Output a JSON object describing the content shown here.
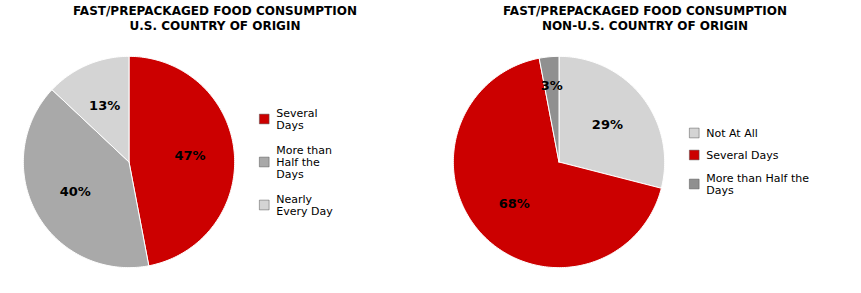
{
  "chart_data": [
    {
      "type": "pie",
      "title": "FAST/PREPACKAGED FOOD CONSUMPTION",
      "subtitle": "U.S. COUNTRY OF ORIGIN",
      "categories": [
        "Several\nDays",
        "More than\nHalf the\nDays",
        "Nearly\nEvery Day"
      ],
      "values": [
        47,
        40,
        13
      ],
      "value_labels": [
        "47%",
        "40%",
        "13%"
      ],
      "colors": [
        "#CC0000",
        "#A9A9A9",
        "#D4D4D4"
      ],
      "data_labels": true,
      "legend": "right"
    },
    {
      "type": "pie",
      "title": "FAST/PREPACKAGED FOOD CONSUMPTION",
      "subtitle": "NON-U.S. COUNTRY OF ORIGIN",
      "categories": [
        "Not At All",
        "Several Days",
        "More than Half the\nDays"
      ],
      "values": [
        29,
        68,
        3
      ],
      "value_labels": [
        "29%",
        "68%",
        "3%"
      ],
      "colors": [
        "#D4D4D4",
        "#CC0000",
        "#909090"
      ],
      "data_labels": true,
      "legend": "right"
    }
  ]
}
